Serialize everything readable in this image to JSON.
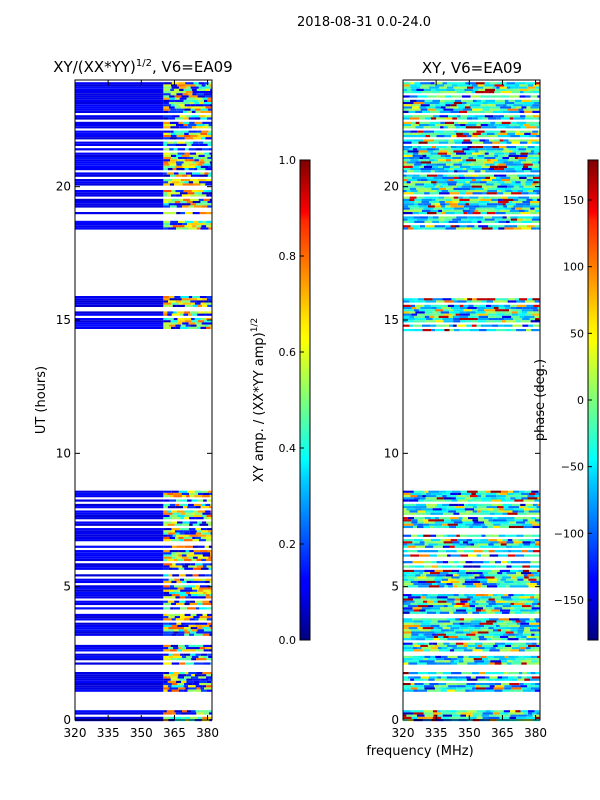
{
  "figure": {
    "suptitle": "2018-08-31 0.0-24.0",
    "xlabel_shared": "frequency (MHz)"
  },
  "chart_data": [
    {
      "type": "heatmap",
      "title_main": "XY/(XX*YY)",
      "title_sup": "1/2",
      "title_tail": ", V6=EA09",
      "xlabel": "",
      "ylabel": "UT (hours)",
      "xlim": [
        320,
        382
      ],
      "ylim": [
        0,
        24
      ],
      "xticks": [
        320,
        335,
        350,
        365,
        380
      ],
      "yticks": [
        0,
        5,
        10,
        15,
        20
      ],
      "colormap": "jet",
      "colorbar": {
        "label_main": "XY amp. / (XX*YY amp)",
        "label_sup": "1/2",
        "vmin": 0.0,
        "vmax": 1.0,
        "ticks": [
          "0.0",
          "0.2",
          "0.4",
          "0.6",
          "0.8",
          "1.0"
        ]
      },
      "data_time_blocks_hours": [
        [
          0.0,
          0.45
        ],
        [
          1.1,
          1.8
        ],
        [
          2.1,
          2.9
        ],
        [
          3.0,
          8.6
        ],
        [
          14.6,
          15.9
        ],
        [
          18.4,
          24.0
        ]
      ],
      "typical_value_low_band": 0.1,
      "typical_value_high_band": 0.55
    },
    {
      "type": "heatmap",
      "title": "XY, V6=EA09",
      "xlabel": "",
      "ylabel": "",
      "xlim": [
        320,
        382
      ],
      "ylim": [
        0,
        24
      ],
      "xticks": [
        320,
        335,
        350,
        365,
        380
      ],
      "yticks": [
        0,
        5,
        10,
        15,
        20
      ],
      "colormap": "jet",
      "colorbar": {
        "label": "phase (deg.)",
        "vmin": -180,
        "vmax": 180,
        "ticks": [
          "150",
          "100",
          "50",
          "0",
          "−50",
          "−100",
          "−150"
        ]
      },
      "data_time_blocks_hours": [
        [
          0.0,
          0.45
        ],
        [
          1.1,
          1.8
        ],
        [
          2.1,
          2.9
        ],
        [
          3.0,
          8.6
        ],
        [
          14.6,
          15.9
        ],
        [
          18.4,
          24.0
        ]
      ],
      "typical_phase_deg": -20
    }
  ]
}
